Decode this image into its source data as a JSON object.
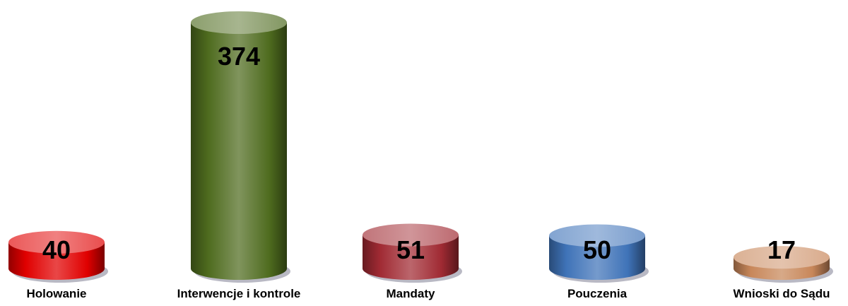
{
  "chart_data": {
    "type": "bar",
    "shape": "cylinder",
    "categories": [
      "Holowanie",
      "Interwencje i kontrole",
      "Mandaty",
      "Pouczenia",
      "Wnioski do Sądu"
    ],
    "values": [
      40,
      374,
      51,
      50,
      17
    ],
    "colors": [
      "#e00000",
      "#4e6b1e",
      "#a02a33",
      "#3f73b8",
      "#c8875a"
    ],
    "title": "",
    "xlabel": "",
    "ylabel": "",
    "grid": false,
    "legend": "none"
  }
}
